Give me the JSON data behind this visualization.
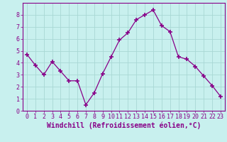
{
  "x": [
    0,
    1,
    2,
    3,
    4,
    5,
    6,
    7,
    8,
    9,
    10,
    11,
    12,
    13,
    14,
    15,
    16,
    17,
    18,
    19,
    20,
    21,
    22,
    23
  ],
  "y": [
    4.7,
    3.8,
    3.0,
    4.1,
    3.3,
    2.5,
    2.5,
    0.5,
    1.5,
    3.1,
    4.5,
    5.9,
    6.5,
    7.6,
    8.0,
    8.4,
    7.1,
    6.6,
    4.5,
    4.3,
    3.7,
    2.9,
    2.1,
    1.2
  ],
  "line_color": "#880088",
  "marker": "+",
  "marker_size": 4,
  "marker_edge_width": 1.2,
  "line_width": 0.9,
  "bg_color": "#c8f0ee",
  "grid_color": "#a8d8d4",
  "xlabel": "Windchill (Refroidissement éolien,°C)",
  "xlabel_color": "#880088",
  "tick_color": "#880088",
  "ylim": [
    0,
    9
  ],
  "xlim_min": -0.5,
  "xlim_max": 23.5,
  "yticks": [
    0,
    1,
    2,
    3,
    4,
    5,
    6,
    7,
    8
  ],
  "xtick_labels": [
    "0",
    "1",
    "2",
    "3",
    "4",
    "5",
    "6",
    "7",
    "8",
    "9",
    "10",
    "11",
    "12",
    "13",
    "14",
    "15",
    "16",
    "17",
    "18",
    "19",
    "20",
    "21",
    "22",
    "23"
  ],
  "spine_color": "#880088",
  "font_size_ticks": 6,
  "font_size_xlabel": 7
}
